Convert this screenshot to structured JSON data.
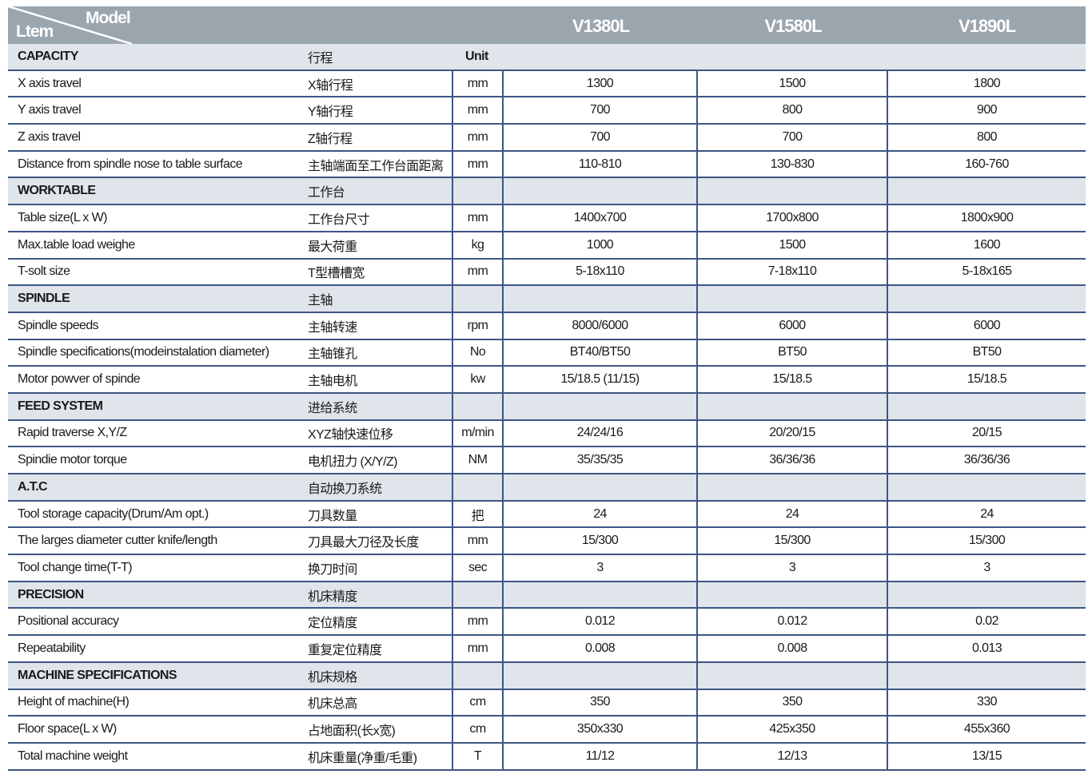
{
  "header": {
    "model_label": "Model",
    "item_label": "Ltem",
    "models": [
      "V1380L",
      "V1580L",
      "V1890L"
    ]
  },
  "colors": {
    "header_bg": "#9aa5ae",
    "section_bg": "#dfe5ea",
    "rule": "#3d5585"
  },
  "rows": [
    {
      "section": true,
      "en": "CAPACITY",
      "cn": "行程",
      "unit": "Unit",
      "v": [
        "",
        "",
        ""
      ]
    },
    {
      "en": "X axis travel",
      "cn": "X轴行程",
      "unit": "mm",
      "v": [
        "1300",
        "1500",
        "1800"
      ]
    },
    {
      "en": "Y axis travel",
      "cn": "Y轴行程",
      "unit": "mm",
      "v": [
        "700",
        "800",
        "900"
      ]
    },
    {
      "en": "Z axis travel",
      "cn": "Z轴行程",
      "unit": "mm",
      "v": [
        "700",
        "700",
        "800"
      ]
    },
    {
      "en": "Distance from spindle nose to table surface",
      "cn": "主轴端面至工作台面距离",
      "unit": "mm",
      "v": [
        "110-810",
        "130-830",
        "160-760"
      ]
    },
    {
      "section": true,
      "en": "WORKTABLE",
      "cn": "工作台",
      "unit": "",
      "v": [
        "",
        "",
        ""
      ]
    },
    {
      "en": "Table size(L x W)",
      "cn": "工作台尺寸",
      "unit": "mm",
      "v": [
        "1400x700",
        "1700x800",
        "1800x900"
      ]
    },
    {
      "en": "Max.table load weighe",
      "cn": "最大荷重",
      "unit": "kg",
      "v": [
        "1000",
        "1500",
        "1600"
      ]
    },
    {
      "en": "T-solt size",
      "cn": "T型槽槽宽",
      "unit": "mm",
      "v": [
        "5-18x110",
        "7-18x110",
        "5-18x165"
      ]
    },
    {
      "section": true,
      "en": "SPINDLE",
      "cn": "主轴",
      "unit": "",
      "v": [
        "",
        "",
        ""
      ]
    },
    {
      "en": "Spindle speeds",
      "cn": "主轴转速",
      "unit": "rpm",
      "v": [
        "8000/6000",
        "6000",
        "6000"
      ]
    },
    {
      "en": "Spindle specifications(modeinstalation diameter)",
      "cn": "主轴锥孔",
      "unit": "No",
      "v": [
        "BT40/BT50",
        "BT50",
        "BT50"
      ]
    },
    {
      "en": "Motor powver of spinde",
      "cn": "主轴电机",
      "unit": "kw",
      "v": [
        "15/18.5 (11/15)",
        "15/18.5",
        "15/18.5"
      ]
    },
    {
      "section": true,
      "en": "FEED SYSTEM",
      "cn": "进给系统",
      "unit": "",
      "v": [
        "",
        "",
        ""
      ]
    },
    {
      "en": "Rapid traverse X,Y/Z",
      "cn": "XYZ轴快速位移",
      "unit": "m/min",
      "v": [
        "24/24/16",
        "20/20/15",
        "20/15"
      ]
    },
    {
      "en": "Spindie motor torque",
      "cn": "电机扭力 (X/Y/Z)",
      "unit": "NM",
      "v": [
        "35/35/35",
        "36/36/36",
        "36/36/36"
      ]
    },
    {
      "section": true,
      "en": "A.T.C",
      "cn": "自动换刀系统",
      "unit": "",
      "v": [
        "",
        "",
        ""
      ]
    },
    {
      "en": "Tool storage capacity(Drum/Am opt.)",
      "cn": "刀具数量",
      "unit": "把",
      "v": [
        "24",
        "24",
        "24"
      ]
    },
    {
      "en": "The larges diameter cutter knife/length",
      "cn": "刀具最大刀径及长度",
      "unit": "mm",
      "v": [
        "15/300",
        "15/300",
        "15/300"
      ]
    },
    {
      "en": "Tool change time(T-T)",
      "cn": "换刀时间",
      "unit": "sec",
      "v": [
        "3",
        "3",
        "3"
      ]
    },
    {
      "section": true,
      "en": "PRECISION",
      "cn": "机床精度",
      "unit": "",
      "v": [
        "",
        "",
        ""
      ]
    },
    {
      "en": "Positional accuracy",
      "cn": "定位精度",
      "unit": "mm",
      "v": [
        "0.012",
        "0.012",
        "0.02"
      ]
    },
    {
      "en": "Repeatability",
      "cn": "重复定位精度",
      "unit": "mm",
      "v": [
        "0.008",
        "0.008",
        "0.013"
      ]
    },
    {
      "section": true,
      "en": "MACHINE SPECIFICATIONS",
      "cn": "机床规格",
      "unit": "",
      "v": [
        "",
        "",
        ""
      ]
    },
    {
      "en": "Height of machine(H)",
      "cn": "机床总高",
      "unit": "cm",
      "v": [
        "350",
        "350",
        "330"
      ]
    },
    {
      "en": "Floor space(L x W)",
      "cn": "占地面积(长x宽)",
      "unit": "cm",
      "v": [
        "350x330",
        "425x350",
        "455x360"
      ]
    },
    {
      "en": "Total machine weight",
      "cn": "机床重量(净重/毛重)",
      "unit": "T",
      "v": [
        "11/12",
        "12/13",
        "13/15"
      ]
    }
  ]
}
